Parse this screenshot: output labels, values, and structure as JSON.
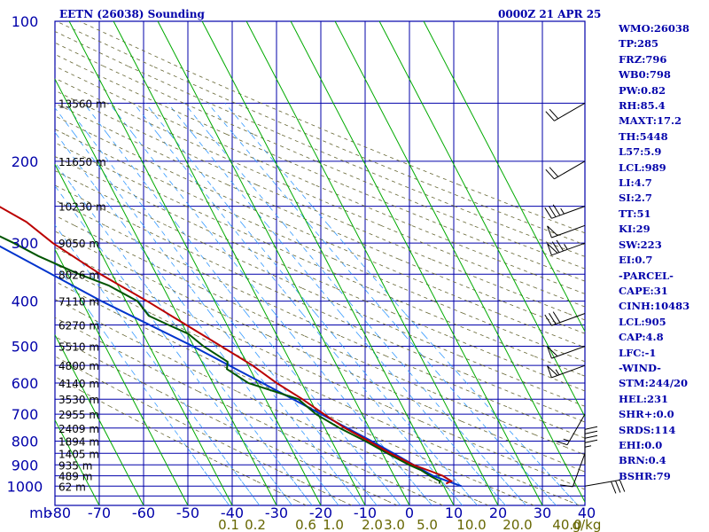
{
  "header": {
    "title": "EETN (26038) Sounding",
    "datetime": "0000Z 21 APR 25"
  },
  "indices": [
    "WMO:26038",
    "TP:285",
    "FRZ:796",
    "WB0:798",
    "PW:0.82",
    "RH:85.4",
    "MAXT:17.2",
    "TH:5448",
    "L57:5.9",
    "LCL:989",
    "LI:4.7",
    "SI:2.7",
    "TT:51",
    "KI:29",
    "SW:223",
    "EI:0.7",
    "-PARCEL-",
    "CAPE:31",
    "CINH:10483",
    "LCL:905",
    "CAP:4.8",
    "LFC:-1",
    "-WIND-",
    "STM:244/20",
    "HEL:231",
    "SHR+:0.0",
    "SRDS:114",
    "EHI:0.0",
    "BRN:0.4",
    "BSHR:79"
  ],
  "colors": {
    "grid": "#0000aa",
    "isotherm": "#00aa00",
    "dry_adiabat": "#666633",
    "mixing_ratio": "#3399ff",
    "temperature": "#bb0000",
    "dewpoint": "#005500",
    "parcel": "#0033cc",
    "wind_barb": "#000000",
    "mixing_ratio_label": "#666600"
  },
  "chart_data": {
    "type": "skew-t",
    "title": "EETN (26038) Sounding",
    "y_unit": "mb",
    "x_unit": "°C",
    "pressure_range": [
      1000,
      100
    ],
    "temperature_range": [
      -80,
      0
    ],
    "pressure_ticks": [
      100,
      200,
      300,
      400,
      500,
      600,
      700,
      800,
      900,
      1000
    ],
    "temperature_ticks": [
      -80,
      -70,
      -60,
      -50,
      -40,
      -30,
      -20,
      -10,
      0,
      10,
      20,
      30,
      40
    ],
    "mixing_ratio_labels": [
      "0.1",
      "0.2",
      "0.6",
      "1.0",
      "2.0",
      "3.0",
      "5.0",
      "10.0",
      "20.0",
      "40.0"
    ],
    "mixing_ratio_unit": "g/kg",
    "height_levels": [
      {
        "p": 150,
        "label": "13560 m"
      },
      {
        "p": 200,
        "label": "11650 m"
      },
      {
        "p": 250,
        "label": "10230 m"
      },
      {
        "p": 300,
        "label": "9050 m"
      },
      {
        "p": 350,
        "label": "8026 m"
      },
      {
        "p": 400,
        "label": "7110 m"
      },
      {
        "p": 450,
        "label": "6270 m"
      },
      {
        "p": 500,
        "label": "5510 m"
      },
      {
        "p": 550,
        "label": "4800 m"
      },
      {
        "p": 600,
        "label": "4140 m"
      },
      {
        "p": 650,
        "label": "3530 m"
      },
      {
        "p": 700,
        "label": "2955 m"
      },
      {
        "p": 750,
        "label": "2409 m"
      },
      {
        "p": 800,
        "label": "1894 m"
      },
      {
        "p": 850,
        "label": "1405 m"
      },
      {
        "p": 900,
        "label": "935 m"
      },
      {
        "p": 950,
        "label": "489 m"
      },
      {
        "p": 1000,
        "label": "62 m"
      }
    ],
    "temperature_profile": [
      {
        "p": 988,
        "t": 10.8
      },
      {
        "p": 975,
        "t": 12.3
      },
      {
        "p": 950,
        "t": 11.0
      },
      {
        "p": 925,
        "t": 8.4
      },
      {
        "p": 900,
        "t": 5.6
      },
      {
        "p": 850,
        "t": 1.8
      },
      {
        "p": 800,
        "t": -1.6
      },
      {
        "p": 750,
        "t": -5.5
      },
      {
        "p": 700,
        "t": -8.6
      },
      {
        "p": 650,
        "t": -11.7
      },
      {
        "p": 600,
        "t": -15.6
      },
      {
        "p": 550,
        "t": -19.0
      },
      {
        "p": 500,
        "t": -23.8
      },
      {
        "p": 450,
        "t": -29.2
      },
      {
        "p": 400,
        "t": -35.2
      },
      {
        "p": 350,
        "t": -42.6
      },
      {
        "p": 300,
        "t": -49.7
      },
      {
        "p": 270,
        "t": -53.2
      },
      {
        "p": 250,
        "t": -57.6
      },
      {
        "p": 200,
        "t": -59.4
      },
      {
        "p": 175,
        "t": -60.8
      },
      {
        "p": 150,
        "t": -63.7
      },
      {
        "p": 125,
        "t": -69.0
      },
      {
        "p": 110,
        "t": -73.4
      }
    ],
    "dewpoint_profile": [
      {
        "p": 988,
        "t": 9.3
      },
      {
        "p": 975,
        "t": 9.7
      },
      {
        "p": 950,
        "t": 8.1
      },
      {
        "p": 925,
        "t": 6.8
      },
      {
        "p": 900,
        "t": 4.7
      },
      {
        "p": 850,
        "t": 1.1
      },
      {
        "p": 800,
        "t": -2.4
      },
      {
        "p": 750,
        "t": -6.7
      },
      {
        "p": 700,
        "t": -10.4
      },
      {
        "p": 650,
        "t": -12.6
      },
      {
        "p": 600,
        "t": -22.0
      },
      {
        "p": 560,
        "t": -25.2
      },
      {
        "p": 540,
        "t": -24.2
      },
      {
        "p": 500,
        "t": -27.8
      },
      {
        "p": 470,
        "t": -29.8
      },
      {
        "p": 450,
        "t": -33.2
      },
      {
        "p": 430,
        "t": -36.6
      },
      {
        "p": 400,
        "t": -37.4
      },
      {
        "p": 370,
        "t": -42.1
      },
      {
        "p": 350,
        "t": -47.4
      },
      {
        "p": 320,
        "t": -54.5
      },
      {
        "p": 300,
        "t": -58.5
      },
      {
        "p": 270,
        "t": -66.0
      },
      {
        "p": 250,
        "t": -67.2
      },
      {
        "p": 200,
        "t": -73.0
      },
      {
        "p": 150,
        "t": -80.7
      },
      {
        "p": 120,
        "t": -87.2
      },
      {
        "p": 105,
        "t": -90.7
      }
    ],
    "parcel_profile": [
      {
        "p": 1000,
        "t": 14.0
      },
      {
        "p": 950,
        "t": 8.8
      },
      {
        "p": 900,
        "t": 5.7
      },
      {
        "p": 850,
        "t": 2.5
      },
      {
        "p": 800,
        "t": -1.0
      },
      {
        "p": 700,
        "t": -9.2
      },
      {
        "p": 600,
        "t": -18.8
      },
      {
        "p": 500,
        "t": -30.2
      },
      {
        "p": 400,
        "t": -45.5
      },
      {
        "p": 300,
        "t": -63.0
      },
      {
        "p": 250,
        "t": -71.7
      },
      {
        "p": 200,
        "t": -83.1
      }
    ],
    "wind_barbs": [
      {
        "p": 1000,
        "dir": 80,
        "spd": 30
      },
      {
        "p": 900,
        "dir": 0,
        "spd": 45
      },
      {
        "p": 850,
        "dir": 200,
        "spd": 10
      },
      {
        "p": 700,
        "dir": 210,
        "spd": 15
      },
      {
        "p": 550,
        "dir": 250,
        "spd": 55
      },
      {
        "p": 500,
        "dir": 250,
        "spd": 50
      },
      {
        "p": 425,
        "dir": 250,
        "spd": 30
      },
      {
        "p": 300,
        "dir": 250,
        "spd": 75
      },
      {
        "p": 275,
        "dir": 250,
        "spd": 50
      },
      {
        "p": 250,
        "dir": 250,
        "spd": 35
      },
      {
        "p": 200,
        "dir": 240,
        "spd": 20
      },
      {
        "p": 150,
        "dir": 240,
        "spd": 20
      }
    ]
  }
}
